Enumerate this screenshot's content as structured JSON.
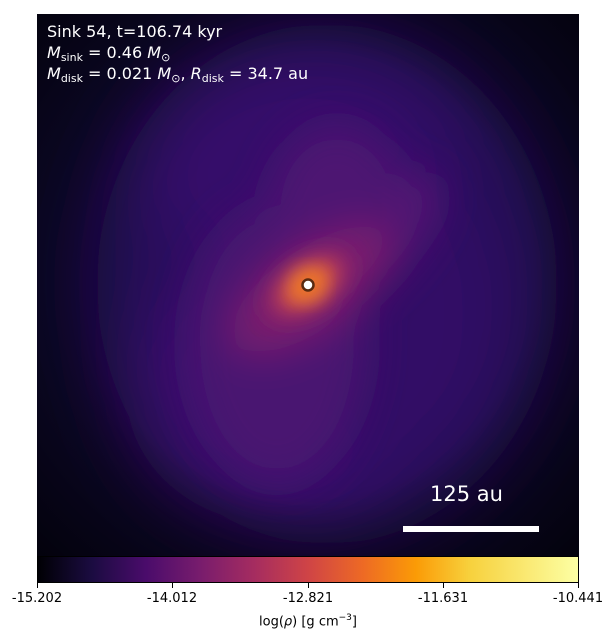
{
  "annotation": {
    "line1": "Sink 54, t=106.74 kyr",
    "msink_symbol": "M",
    "msink_sub": "sink",
    "msink_value": " = 0.46 ",
    "msun_symbol": "M",
    "msun_sub": "⊙",
    "mdisk_symbol": "M",
    "mdisk_sub": "disk",
    "mdisk_value": " = 0.021 ",
    "rdisk_symbol": "R",
    "rdisk_sub": "disk",
    "rdisk_value": " = 34.7 au",
    "comma": ", "
  },
  "scalebar": {
    "label": "125 au"
  },
  "colorbar": {
    "ticks": [
      "-15.202",
      "-14.012",
      "-12.821",
      "-11.631",
      "-10.441"
    ],
    "label_prefix": "log(",
    "label_rho": "ρ",
    "label_suffix": ") [g cm",
    "label_exp": "−3",
    "label_close": "]",
    "colormap": "inferno",
    "colors": {
      "sink_marker": "#ffffff",
      "sink_ring": "#5a2a10"
    }
  }
}
